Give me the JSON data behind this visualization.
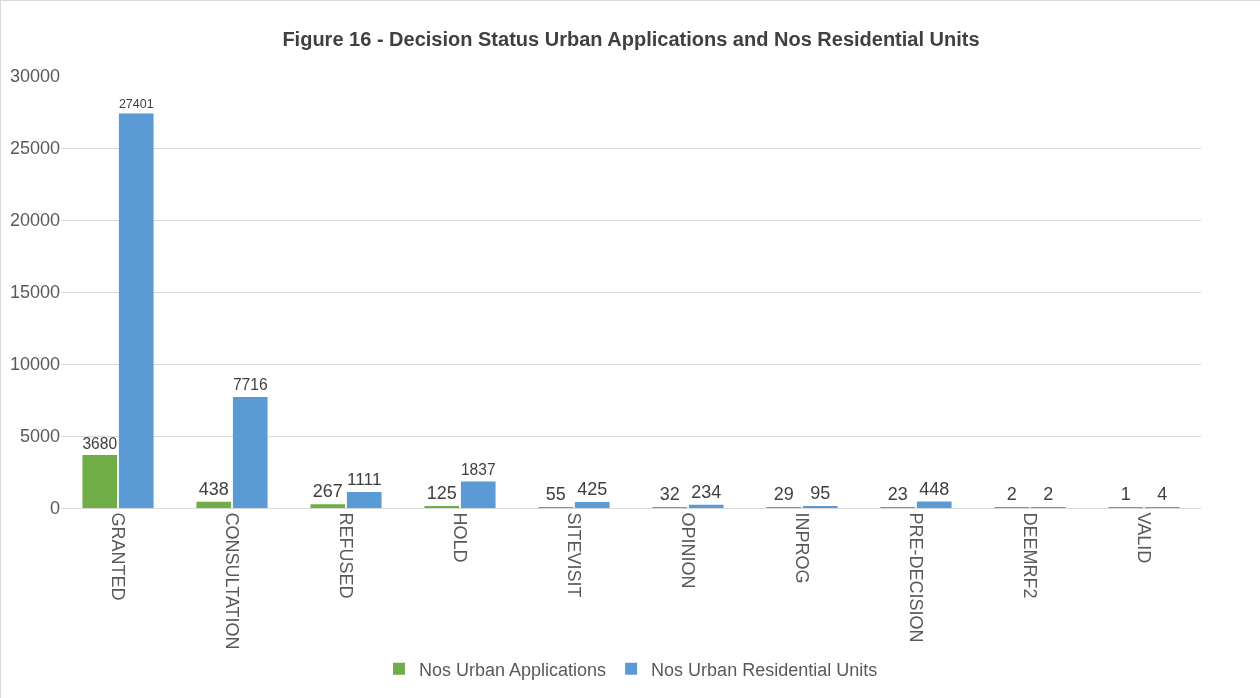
{
  "chart_data": {
    "type": "bar",
    "title": "Figure 16 - Decision Status Urban Applications and Nos Residential Units",
    "categories": [
      "GRANTED",
      "CONSULTATION",
      "REFUSED",
      "HOLD",
      "SITEVISIT",
      "OPINION",
      "INPROG",
      "PRE-DECISION",
      "DEEMRF2",
      "VALID"
    ],
    "series": [
      {
        "name": "Nos Urban Applications",
        "color": "#70ad47",
        "values": [
          3680,
          438,
          267,
          125,
          55,
          32,
          29,
          23,
          2,
          1
        ]
      },
      {
        "name": "Nos Urban Residential Units",
        "color": "#5b9bd5",
        "values": [
          27401,
          7716,
          1111,
          1837,
          425,
          234,
          95,
          448,
          2,
          4
        ]
      }
    ],
    "ylim": [
      0,
      30000
    ],
    "yticks": [
      0,
      5000,
      10000,
      15000,
      20000,
      25000,
      30000
    ],
    "grid": "y",
    "legend": "bottom",
    "data_labels": true
  }
}
